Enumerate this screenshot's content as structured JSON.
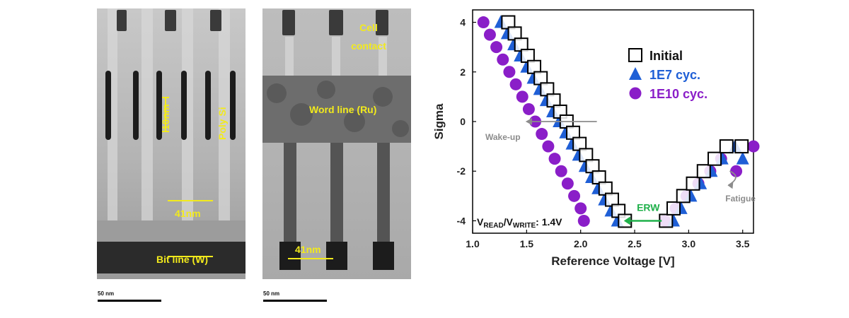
{
  "left_image": {
    "labels": {
      "dim_10nm": "10nm",
      "poly_si": "Poly Si",
      "dim_41nm": "41nm",
      "bit_line": "Bit line (W)"
    },
    "scale_label": "50 nm"
  },
  "right_image": {
    "labels": {
      "cell_contact_1": "Cell",
      "cell_contact_2": "contact",
      "word_line": "Word line (Ru)",
      "dim_41nm": "41nm"
    },
    "scale_label": "50 nm"
  },
  "colors": {
    "label_yellow": "#f2ea1c",
    "series_initial": "#000000",
    "series_1e7": "#1f5fd6",
    "series_1e10": "#8a1ec8",
    "erw_arrow": "#1fb04a",
    "annotation_gray": "#8c8c8c"
  },
  "chart_data": {
    "type": "scatter",
    "xlabel": "Reference Voltage [V]",
    "ylabel": "Sigma",
    "xlim": [
      1.0,
      3.6
    ],
    "ylim": [
      -4.5,
      4.5
    ],
    "xticks": [
      "1.0",
      "1.5",
      "2.0",
      "2.5",
      "3.0",
      "3.5"
    ],
    "yticks": [
      "4",
      "2",
      "0",
      "-2",
      "-4"
    ],
    "legend_position": "top-right",
    "series": [
      {
        "name": "Initial",
        "marker": "open-square",
        "left_branch": [
          [
            1.33,
            4.0
          ],
          [
            1.39,
            3.55
          ],
          [
            1.45,
            3.1
          ],
          [
            1.51,
            2.65
          ],
          [
            1.57,
            2.2
          ],
          [
            1.63,
            1.75
          ],
          [
            1.69,
            1.3
          ],
          [
            1.75,
            0.85
          ],
          [
            1.81,
            0.4
          ],
          [
            1.87,
            0.0
          ],
          [
            1.93,
            -0.45
          ],
          [
            1.99,
            -0.9
          ],
          [
            2.05,
            -1.35
          ],
          [
            2.11,
            -1.8
          ],
          [
            2.17,
            -2.25
          ],
          [
            2.23,
            -2.7
          ],
          [
            2.29,
            -3.15
          ],
          [
            2.35,
            -3.6
          ],
          [
            2.41,
            -4.0
          ]
        ],
        "right_branch": [
          [
            2.79,
            -4.0
          ],
          [
            2.86,
            -3.5
          ],
          [
            2.95,
            -3.0
          ],
          [
            3.04,
            -2.5
          ],
          [
            3.14,
            -2.0
          ],
          [
            3.24,
            -1.5
          ],
          [
            3.35,
            -1.0
          ],
          [
            3.49,
            -1.0
          ]
        ]
      },
      {
        "name": "1E7 cyc.",
        "marker": "filled-triangle",
        "left_branch": [
          [
            1.26,
            4.0
          ],
          [
            1.32,
            3.55
          ],
          [
            1.38,
            3.1
          ],
          [
            1.44,
            2.65
          ],
          [
            1.5,
            2.2
          ],
          [
            1.56,
            1.75
          ],
          [
            1.62,
            1.3
          ],
          [
            1.68,
            0.85
          ],
          [
            1.74,
            0.4
          ],
          [
            1.8,
            0.0
          ],
          [
            1.86,
            -0.45
          ],
          [
            1.92,
            -0.9
          ],
          [
            1.98,
            -1.35
          ],
          [
            2.04,
            -1.8
          ],
          [
            2.1,
            -2.25
          ],
          [
            2.16,
            -2.7
          ],
          [
            2.22,
            -3.15
          ],
          [
            2.28,
            -3.6
          ],
          [
            2.34,
            -4.0
          ]
        ],
        "right_branch": [
          [
            2.86,
            -4.0
          ],
          [
            2.93,
            -3.5
          ],
          [
            3.02,
            -3.0
          ],
          [
            3.11,
            -2.5
          ],
          [
            3.21,
            -2.0
          ],
          [
            3.31,
            -1.5
          ],
          [
            3.43,
            -1.0
          ],
          [
            3.5,
            -1.5
          ]
        ]
      },
      {
        "name": "1E10 cyc.",
        "marker": "filled-circle",
        "left_branch": [
          [
            1.1,
            4.0
          ],
          [
            1.16,
            3.5
          ],
          [
            1.22,
            3.0
          ],
          [
            1.28,
            2.5
          ],
          [
            1.34,
            2.0
          ],
          [
            1.4,
            1.5
          ],
          [
            1.46,
            1.0
          ],
          [
            1.52,
            0.5
          ],
          [
            1.58,
            0.0
          ],
          [
            1.64,
            -0.5
          ],
          [
            1.7,
            -1.0
          ],
          [
            1.76,
            -1.5
          ],
          [
            1.82,
            -2.0
          ],
          [
            1.88,
            -2.5
          ],
          [
            1.94,
            -3.0
          ],
          [
            2.0,
            -3.5
          ],
          [
            2.03,
            -4.0
          ]
        ],
        "right_branch": [
          [
            2.78,
            -4.0
          ],
          [
            2.88,
            -3.5
          ],
          [
            2.98,
            -3.0
          ],
          [
            3.09,
            -2.5
          ],
          [
            3.2,
            -2.0
          ],
          [
            3.3,
            -1.5
          ],
          [
            3.44,
            -2.0
          ],
          [
            3.6,
            -1.0
          ]
        ]
      }
    ],
    "annotations": {
      "wake_up": "Wake-up",
      "erw": "ERW",
      "fatigue": "Fatigue",
      "condition_v": "V",
      "condition_read": "READ",
      "condition_slash": "/V",
      "condition_write": "WRITE",
      "condition_value": ": 1.4V"
    }
  }
}
